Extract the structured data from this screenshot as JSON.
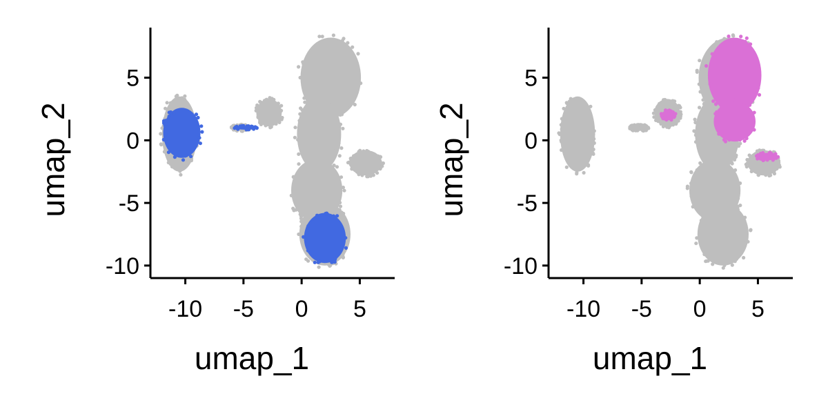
{
  "chart_data": [
    {
      "type": "scatter",
      "panel": "left",
      "xlabel": "umap_1",
      "ylabel": "umap_2",
      "xlim": [
        -13,
        8
      ],
      "ylim": [
        -11,
        9
      ],
      "x_ticks": [
        -10,
        -5,
        0,
        5
      ],
      "y_ticks": [
        -10,
        -5,
        0,
        5
      ],
      "x_tick_labels": [
        "-10",
        "-5",
        "0",
        "5"
      ],
      "y_tick_labels": [
        "-10",
        "-5",
        "0",
        "5"
      ],
      "grid": false,
      "legend": "none",
      "series": [
        {
          "role": "background",
          "color": "#bebebe",
          "point_regions": [
            {
              "cx": -10.5,
              "cy": 0.5,
              "rx": 1.5,
              "ry": 3.0
            },
            {
              "cx": -5.2,
              "cy": 1.0,
              "rx": 0.8,
              "ry": 0.25
            },
            {
              "cx": -2.8,
              "cy": 2.2,
              "rx": 1.1,
              "ry": 1.1
            },
            {
              "cx": 2.5,
              "cy": 5.0,
              "rx": 2.6,
              "ry": 3.2
            },
            {
              "cx": 1.5,
              "cy": 0.5,
              "rx": 1.9,
              "ry": 3.0
            },
            {
              "cx": 1.3,
              "cy": -4.0,
              "rx": 2.2,
              "ry": 2.5
            },
            {
              "cx": 2.0,
              "cy": -7.5,
              "rx": 2.2,
              "ry": 2.5
            },
            {
              "cx": 5.5,
              "cy": -1.8,
              "rx": 1.4,
              "ry": 1.0
            }
          ]
        },
        {
          "role": "highlight",
          "color": "#4169e1",
          "point_regions": [
            {
              "cx": -10.3,
              "cy": 0.6,
              "rx": 1.6,
              "ry": 2.0
            },
            {
              "cx": -4.8,
              "cy": 1.0,
              "rx": 0.9,
              "ry": 0.15
            },
            {
              "cx": 2.0,
              "cy": -7.8,
              "rx": 1.8,
              "ry": 2.0
            }
          ]
        }
      ]
    },
    {
      "type": "scatter",
      "panel": "right",
      "xlabel": "umap_1",
      "ylabel": "umap_2",
      "xlim": [
        -13,
        8
      ],
      "ylim": [
        -11,
        9
      ],
      "x_ticks": [
        -10,
        -5,
        0,
        5
      ],
      "y_ticks": [
        -10,
        -5,
        0,
        5
      ],
      "x_tick_labels": [
        "-10",
        "-5",
        "0",
        "5"
      ],
      "y_tick_labels": [
        "-10",
        "-5",
        "0",
        "5"
      ],
      "grid": false,
      "legend": "none",
      "series": [
        {
          "role": "background",
          "color": "#bebebe",
          "point_regions": [
            {
              "cx": -10.5,
              "cy": 0.5,
              "rx": 1.5,
              "ry": 3.0
            },
            {
              "cx": -5.2,
              "cy": 1.0,
              "rx": 0.8,
              "ry": 0.25
            },
            {
              "cx": -2.8,
              "cy": 2.2,
              "rx": 1.1,
              "ry": 1.1
            },
            {
              "cx": 2.5,
              "cy": 5.0,
              "rx": 2.6,
              "ry": 3.2
            },
            {
              "cx": 1.5,
              "cy": 0.5,
              "rx": 1.9,
              "ry": 3.0
            },
            {
              "cx": 1.3,
              "cy": -4.0,
              "rx": 2.2,
              "ry": 2.5
            },
            {
              "cx": 2.0,
              "cy": -7.5,
              "rx": 2.2,
              "ry": 2.5
            },
            {
              "cx": 5.5,
              "cy": -1.8,
              "rx": 1.4,
              "ry": 1.0
            }
          ]
        },
        {
          "role": "highlight",
          "color": "#da70d6",
          "point_regions": [
            {
              "cx": 3.0,
              "cy": 5.2,
              "rx": 2.3,
              "ry": 3.0
            },
            {
              "cx": 3.0,
              "cy": 1.5,
              "rx": 1.8,
              "ry": 1.6
            },
            {
              "cx": -2.7,
              "cy": 2.0,
              "rx": 0.6,
              "ry": 0.4
            },
            {
              "cx": 5.8,
              "cy": -1.3,
              "rx": 0.9,
              "ry": 0.3
            }
          ]
        }
      ]
    }
  ]
}
